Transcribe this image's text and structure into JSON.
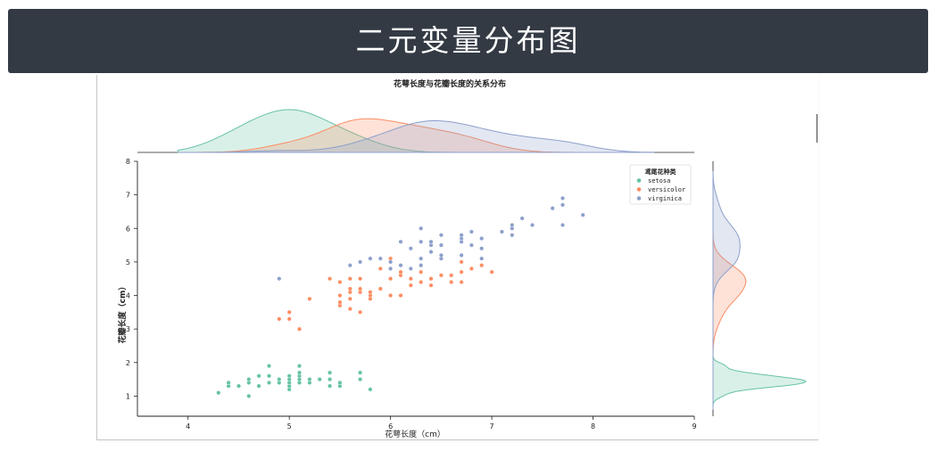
{
  "banner": {
    "title": "二元变量分布图"
  },
  "chart_data": {
    "type": "scatter",
    "title": "花萼长度与花瓣长度的关系分布",
    "xlabel": "花萼长度（cm）",
    "ylabel": "花瓣长度（cm）",
    "xlim": [
      3.5,
      9
    ],
    "ylim": [
      0.4,
      8
    ],
    "xticks": [
      4,
      5,
      6,
      7,
      8,
      9
    ],
    "yticks": [
      1,
      2,
      3,
      4,
      5,
      6,
      7,
      8
    ],
    "grid": false,
    "legend": {
      "title": "鸢尾花种类",
      "placement": "top-right"
    },
    "marginals": "kde",
    "series": [
      {
        "name": "setosa",
        "color": "#66c2a5",
        "points": [
          [
            4.3,
            1.1
          ],
          [
            4.4,
            1.3
          ],
          [
            4.4,
            1.4
          ],
          [
            4.5,
            1.3
          ],
          [
            4.6,
            1.0
          ],
          [
            4.6,
            1.4
          ],
          [
            4.6,
            1.5
          ],
          [
            4.7,
            1.3
          ],
          [
            4.7,
            1.6
          ],
          [
            4.8,
            1.4
          ],
          [
            4.8,
            1.6
          ],
          [
            4.8,
            1.9
          ],
          [
            4.9,
            1.4
          ],
          [
            4.9,
            1.5
          ],
          [
            5.0,
            1.2
          ],
          [
            5.0,
            1.3
          ],
          [
            5.0,
            1.4
          ],
          [
            5.0,
            1.5
          ],
          [
            5.0,
            1.6
          ],
          [
            5.1,
            1.4
          ],
          [
            5.1,
            1.5
          ],
          [
            5.1,
            1.6
          ],
          [
            5.1,
            1.7
          ],
          [
            5.1,
            1.9
          ],
          [
            5.2,
            1.4
          ],
          [
            5.2,
            1.5
          ],
          [
            5.3,
            1.5
          ],
          [
            5.4,
            1.3
          ],
          [
            5.4,
            1.5
          ],
          [
            5.4,
            1.7
          ],
          [
            5.5,
            1.3
          ],
          [
            5.5,
            1.4
          ],
          [
            5.7,
            1.5
          ],
          [
            5.7,
            1.7
          ],
          [
            5.8,
            1.2
          ]
        ]
      },
      {
        "name": "versicolor",
        "color": "#fc8d62",
        "points": [
          [
            4.9,
            3.3
          ],
          [
            5.0,
            3.3
          ],
          [
            5.0,
            3.5
          ],
          [
            5.1,
            3.0
          ],
          [
            5.2,
            3.9
          ],
          [
            5.4,
            4.5
          ],
          [
            5.5,
            3.7
          ],
          [
            5.5,
            3.8
          ],
          [
            5.5,
            4.0
          ],
          [
            5.5,
            4.4
          ],
          [
            5.6,
            3.6
          ],
          [
            5.6,
            3.9
          ],
          [
            5.6,
            4.1
          ],
          [
            5.6,
            4.2
          ],
          [
            5.6,
            4.5
          ],
          [
            5.7,
            3.5
          ],
          [
            5.7,
            4.1
          ],
          [
            5.7,
            4.2
          ],
          [
            5.7,
            4.5
          ],
          [
            5.8,
            3.9
          ],
          [
            5.8,
            4.0
          ],
          [
            5.8,
            4.1
          ],
          [
            5.9,
            4.2
          ],
          [
            5.9,
            4.8
          ],
          [
            6.0,
            4.0
          ],
          [
            6.0,
            4.5
          ],
          [
            6.0,
            5.1
          ],
          [
            6.1,
            4.0
          ],
          [
            6.1,
            4.6
          ],
          [
            6.1,
            4.7
          ],
          [
            6.2,
            4.3
          ],
          [
            6.2,
            4.5
          ],
          [
            6.3,
            4.4
          ],
          [
            6.3,
            4.7
          ],
          [
            6.3,
            4.9
          ],
          [
            6.4,
            4.3
          ],
          [
            6.4,
            4.5
          ],
          [
            6.5,
            4.6
          ],
          [
            6.6,
            4.4
          ],
          [
            6.6,
            4.6
          ],
          [
            6.7,
            4.4
          ],
          [
            6.7,
            4.7
          ],
          [
            6.7,
            5.0
          ],
          [
            6.8,
            4.8
          ],
          [
            6.9,
            4.9
          ],
          [
            7.0,
            4.7
          ]
        ]
      },
      {
        "name": "virginica",
        "color": "#8da0cb",
        "points": [
          [
            4.9,
            4.5
          ],
          [
            5.6,
            4.9
          ],
          [
            5.7,
            5.0
          ],
          [
            5.8,
            5.1
          ],
          [
            5.9,
            5.1
          ],
          [
            6.0,
            4.8
          ],
          [
            6.0,
            5.0
          ],
          [
            6.1,
            4.9
          ],
          [
            6.1,
            5.6
          ],
          [
            6.2,
            4.8
          ],
          [
            6.2,
            5.4
          ],
          [
            6.3,
            4.9
          ],
          [
            6.3,
            5.1
          ],
          [
            6.3,
            5.6
          ],
          [
            6.3,
            6.0
          ],
          [
            6.4,
            5.3
          ],
          [
            6.4,
            5.5
          ],
          [
            6.4,
            5.6
          ],
          [
            6.5,
            5.1
          ],
          [
            6.5,
            5.2
          ],
          [
            6.5,
            5.5
          ],
          [
            6.5,
            5.8
          ],
          [
            6.7,
            5.2
          ],
          [
            6.7,
            5.6
          ],
          [
            6.7,
            5.7
          ],
          [
            6.7,
            5.8
          ],
          [
            6.8,
            5.5
          ],
          [
            6.8,
            5.9
          ],
          [
            6.9,
            5.1
          ],
          [
            6.9,
            5.4
          ],
          [
            6.9,
            5.7
          ],
          [
            7.1,
            5.9
          ],
          [
            7.2,
            5.8
          ],
          [
            7.2,
            6.0
          ],
          [
            7.2,
            6.1
          ],
          [
            7.3,
            6.3
          ],
          [
            7.4,
            6.1
          ],
          [
            7.6,
            6.6
          ],
          [
            7.7,
            6.1
          ],
          [
            7.7,
            6.7
          ],
          [
            7.7,
            6.9
          ],
          [
            7.9,
            6.4
          ]
        ]
      }
    ]
  }
}
